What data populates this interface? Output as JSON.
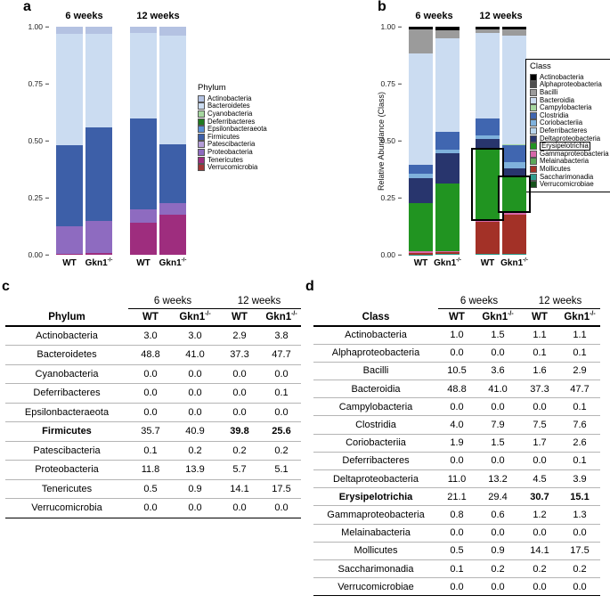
{
  "chart_data": [
    {
      "type": "bar",
      "stacking": "percent",
      "panel_label": "a",
      "ylabel": "",
      "ylim": [
        0,
        1
      ],
      "grid": false,
      "legend_title": "Phylum",
      "legend_position": "right",
      "legend_boxed": false,
      "y_ticks": [
        "1.00",
        "0.75",
        "0.50",
        "0.25",
        "0.00"
      ],
      "group_headers": [
        "6 weeks",
        "12 weeks"
      ],
      "categories": [
        "WT",
        "Gkn1-/-",
        "WT",
        "Gkn1-/-"
      ],
      "series": [
        {
          "name": "Actinobacteria",
          "color": "#b4c2e2",
          "values": [
            3.0,
            3.0,
            2.9,
            3.8
          ]
        },
        {
          "name": "Bacteroidetes",
          "color": "#cbdcf1",
          "values": [
            48.8,
            41.0,
            37.3,
            47.7
          ]
        },
        {
          "name": "Cyanobacteria",
          "color": "#a6d7a0",
          "values": [
            0.0,
            0.0,
            0.0,
            0.0
          ]
        },
        {
          "name": "Deferribacteres",
          "color": "#1f7a1f",
          "values": [
            0.0,
            0.0,
            0.0,
            0.1
          ]
        },
        {
          "name": "Epsilonbacteraeota",
          "color": "#5b8ed6",
          "values": [
            0.0,
            0.0,
            0.0,
            0.0
          ]
        },
        {
          "name": "Firmicutes",
          "color": "#3d5fa8",
          "values": [
            35.7,
            40.9,
            39.8,
            25.6
          ]
        },
        {
          "name": "Patescibacteria",
          "color": "#b49dd8",
          "values": [
            0.1,
            0.2,
            0.2,
            0.2
          ]
        },
        {
          "name": "Proteobacteria",
          "color": "#8e6bc0",
          "values": [
            11.8,
            13.9,
            5.7,
            5.1
          ]
        },
        {
          "name": "Tenericutes",
          "color": "#9e2d7e",
          "values": [
            0.5,
            0.9,
            14.1,
            17.5
          ]
        },
        {
          "name": "Verrucomicrobia",
          "color": "#a03636",
          "values": [
            0.0,
            0.0,
            0.0,
            0.0
          ]
        }
      ],
      "highlighted_segments": []
    },
    {
      "type": "bar",
      "stacking": "percent",
      "panel_label": "b",
      "ylabel": "Relative Abundance (Class)",
      "ylim": [
        0,
        1
      ],
      "grid": false,
      "legend_title": "Class",
      "legend_position": "right",
      "legend_boxed": true,
      "y_ticks": [
        "1.00",
        "0.75",
        "0.50",
        "0.25",
        "0.00"
      ],
      "group_headers": [
        "6 weeks",
        "12 weeks"
      ],
      "categories": [
        "WT",
        "Gkn1-/-",
        "WT",
        "Gkn1-/-"
      ],
      "series": [
        {
          "name": "Actinobacteria",
          "color": "#000000",
          "values": [
            1.0,
            1.5,
            1.1,
            1.1
          ]
        },
        {
          "name": "Alphaproteobacteria",
          "color": "#4d4d4d",
          "values": [
            0.0,
            0.0,
            0.1,
            0.1
          ]
        },
        {
          "name": "Bacilli",
          "color": "#9b9b9b",
          "values": [
            10.5,
            3.6,
            1.6,
            2.9
          ]
        },
        {
          "name": "Bacteroidia",
          "color": "#cbdcf1",
          "values": [
            48.8,
            41.0,
            37.3,
            47.7
          ]
        },
        {
          "name": "Campylobacteria",
          "color": "#a6d7a0",
          "values": [
            0.0,
            0.0,
            0.0,
            0.1
          ]
        },
        {
          "name": "Clostridia",
          "color": "#4066b0",
          "values": [
            4.0,
            7.9,
            7.5,
            7.6
          ]
        },
        {
          "name": "Coriobacteriia",
          "color": "#7fb1dc",
          "values": [
            1.9,
            1.5,
            1.7,
            2.6
          ]
        },
        {
          "name": "Deferribacteres",
          "color": "#b9d5ec",
          "values": [
            0.0,
            0.0,
            0.0,
            0.1
          ]
        },
        {
          "name": "Deltaproteobacteria",
          "color": "#28356d",
          "values": [
            11.0,
            13.2,
            4.5,
            3.9
          ]
        },
        {
          "name": "Erysipelotrichia",
          "color": "#219421",
          "values": [
            21.1,
            29.4,
            30.7,
            15.1
          ],
          "highlight_in_legend": true
        },
        {
          "name": "Gammaproteobacteria",
          "color": "#d667a9",
          "values": [
            0.8,
            0.6,
            1.2,
            1.3
          ]
        },
        {
          "name": "Melainabacteria",
          "color": "#5aa85a",
          "values": [
            0.0,
            0.0,
            0.0,
            0.0
          ]
        },
        {
          "name": "Mollicutes",
          "color": "#a33127",
          "values": [
            0.5,
            0.9,
            14.1,
            17.5
          ]
        },
        {
          "name": "Saccharimonadia",
          "color": "#2f9d8e",
          "values": [
            0.1,
            0.2,
            0.2,
            0.2
          ]
        },
        {
          "name": "Verrucomicrobiae",
          "color": "#16521b",
          "values": [
            0.0,
            0.0,
            0.0,
            0.0
          ]
        }
      ],
      "highlighted_segments": [
        {
          "bar_index": 2,
          "series": "Erysipelotrichia"
        },
        {
          "bar_index": 3,
          "series": "Erysipelotrichia"
        }
      ]
    }
  ],
  "tables": {
    "c": {
      "panel_label": "c",
      "group_headers": [
        "6 weeks",
        "12 weeks"
      ],
      "row_header": "Phylum",
      "col_headers": [
        "WT",
        "Gkn1-/-",
        "WT",
        "Gkn1-/-"
      ],
      "rows": [
        {
          "label": "Actinobacteria",
          "values": [
            "3.0",
            "3.0",
            "2.9",
            "3.8"
          ]
        },
        {
          "label": "Bacteroidetes",
          "values": [
            "48.8",
            "41.0",
            "37.3",
            "47.7"
          ]
        },
        {
          "label": "Cyanobacteria",
          "values": [
            "0.0",
            "0.0",
            "0.0",
            "0.0"
          ]
        },
        {
          "label": "Deferribacteres",
          "values": [
            "0.0",
            "0.0",
            "0.0",
            "0.1"
          ]
        },
        {
          "label": "Epsilonbacteraeota",
          "values": [
            "0.0",
            "0.0",
            "0.0",
            "0.0"
          ]
        },
        {
          "label": "Firmicutes",
          "bold": true,
          "values": [
            "35.7",
            "40.9",
            "39.8",
            "25.6"
          ],
          "bold_values": [
            false,
            false,
            true,
            true
          ]
        },
        {
          "label": "Patescibacteria",
          "values": [
            "0.1",
            "0.2",
            "0.2",
            "0.2"
          ]
        },
        {
          "label": "Proteobacteria",
          "values": [
            "11.8",
            "13.9",
            "5.7",
            "5.1"
          ]
        },
        {
          "label": "Tenericutes",
          "values": [
            "0.5",
            "0.9",
            "14.1",
            "17.5"
          ]
        },
        {
          "label": "Verrucomicrobia",
          "values": [
            "0.0",
            "0.0",
            "0.0",
            "0.0"
          ]
        }
      ]
    },
    "d": {
      "panel_label": "d",
      "group_headers": [
        "6 weeks",
        "12 weeks"
      ],
      "row_header": "Class",
      "col_headers": [
        "WT",
        "Gkn1-/-",
        "WT",
        "Gkn1-/-"
      ],
      "rows": [
        {
          "label": "Actinobacteria",
          "values": [
            "1.0",
            "1.5",
            "1.1",
            "1.1"
          ]
        },
        {
          "label": "Alphaproteobacteria",
          "values": [
            "0.0",
            "0.0",
            "0.1",
            "0.1"
          ]
        },
        {
          "label": "Bacilli",
          "values": [
            "10.5",
            "3.6",
            "1.6",
            "2.9"
          ]
        },
        {
          "label": "Bacteroidia",
          "values": [
            "48.8",
            "41.0",
            "37.3",
            "47.7"
          ]
        },
        {
          "label": "Campylobacteria",
          "values": [
            "0.0",
            "0.0",
            "0.0",
            "0.1"
          ]
        },
        {
          "label": "Clostridia",
          "values": [
            "4.0",
            "7.9",
            "7.5",
            "7.6"
          ]
        },
        {
          "label": "Coriobacteriia",
          "values": [
            "1.9",
            "1.5",
            "1.7",
            "2.6"
          ]
        },
        {
          "label": "Deferribacteres",
          "values": [
            "0.0",
            "0.0",
            "0.0",
            "0.1"
          ]
        },
        {
          "label": "Deltaproteobacteria",
          "values": [
            "11.0",
            "13.2",
            "4.5",
            "3.9"
          ]
        },
        {
          "label": "Erysipelotrichia",
          "bold": true,
          "values": [
            "21.1",
            "29.4",
            "30.7",
            "15.1"
          ],
          "bold_values": [
            false,
            false,
            true,
            true
          ]
        },
        {
          "label": "Gammaproteobacteria",
          "values": [
            "0.8",
            "0.6",
            "1.2",
            "1.3"
          ]
        },
        {
          "label": "Melainabacteria",
          "values": [
            "0.0",
            "0.0",
            "0.0",
            "0.0"
          ]
        },
        {
          "label": "Mollicutes",
          "values": [
            "0.5",
            "0.9",
            "14.1",
            "17.5"
          ]
        },
        {
          "label": "Saccharimonadia",
          "values": [
            "0.1",
            "0.2",
            "0.2",
            "0.2"
          ]
        },
        {
          "label": "Verrucomicrobiae",
          "values": [
            "0.0",
            "0.0",
            "0.0",
            "0.0"
          ]
        }
      ]
    }
  }
}
